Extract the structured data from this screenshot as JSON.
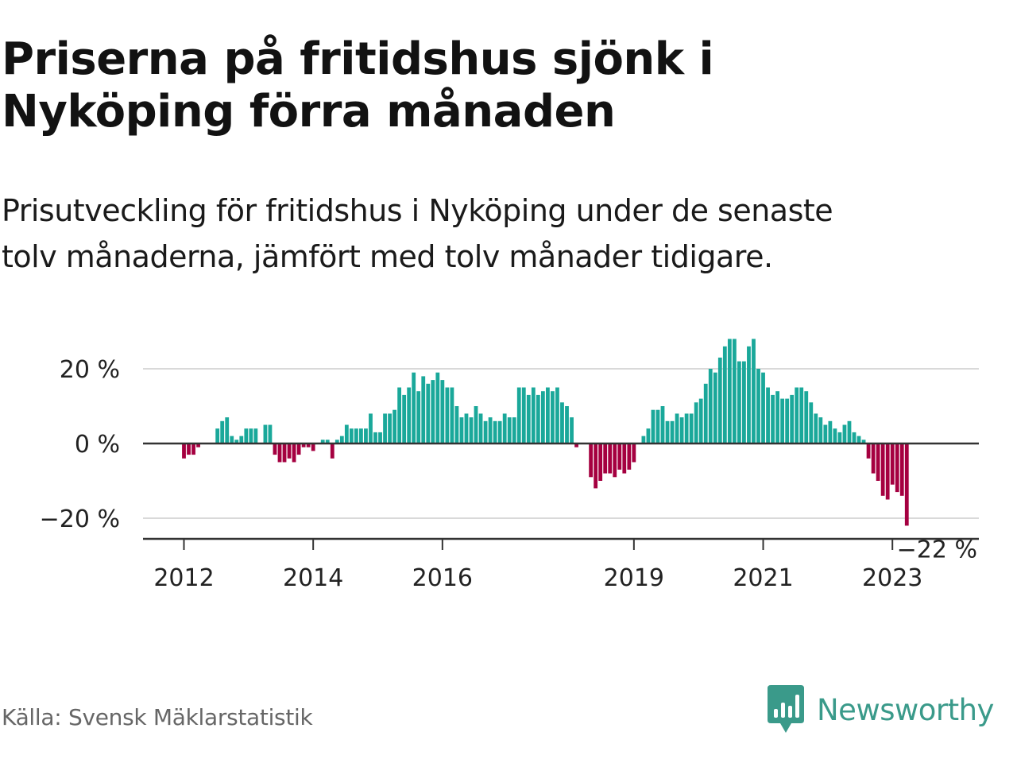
{
  "header": {
    "title_line1": "Priserna på fritidshus sjönk i",
    "title_line2": "Nyköping förra månaden",
    "subtitle_line1": "Prisutveckling för fritidshus i Nyköping under de senaste",
    "subtitle_line2": "tolv månaderna, jämfört med tolv månader tidigare."
  },
  "footer": {
    "source": "Källa: Svensk Mäklarstatistik",
    "brand": "Newsworthy"
  },
  "colors": {
    "positive": "#1aa89a",
    "negative": "#a50040",
    "grid": "#d9d9d9",
    "zero_line": "#333333",
    "axis": "#333333",
    "brand": "#3a9a8a",
    "text": "#121212"
  },
  "chart_data": {
    "type": "bar",
    "ylabel": "",
    "xlabel": "",
    "ylim": [
      -26,
      30
    ],
    "y_ticks": [
      {
        "value": 20,
        "label": "20 %"
      },
      {
        "value": 0,
        "label": "0 %"
      },
      {
        "value": -20,
        "label": "−20 %"
      }
    ],
    "x_ticks": [
      {
        "index": 0,
        "label": "2012"
      },
      {
        "index": 27,
        "label": "2014"
      },
      {
        "index": 54,
        "label": "2016"
      },
      {
        "index": 94,
        "label": "2019"
      },
      {
        "index": 121,
        "label": "2021"
      },
      {
        "index": 148,
        "label": "2023"
      }
    ],
    "last_value_label": "−22 %",
    "grid": true,
    "legend": "none",
    "values": [
      -4,
      -3,
      -3,
      -1,
      0,
      0,
      0,
      4,
      6,
      7,
      2,
      1,
      2,
      4,
      4,
      4,
      0,
      5,
      5,
      -3,
      -5,
      -5,
      -4,
      -5,
      -3,
      -1,
      -1,
      -2,
      0,
      1,
      1,
      -4,
      1,
      2,
      5,
      4,
      4,
      4,
      4,
      8,
      3,
      3,
      8,
      8,
      9,
      15,
      13,
      15,
      19,
      14,
      18,
      16,
      17,
      19,
      17,
      15,
      15,
      10,
      7,
      8,
      7,
      10,
      8,
      6,
      7,
      6,
      6,
      8,
      7,
      7,
      15,
      15,
      13,
      15,
      13,
      14,
      15,
      14,
      15,
      11,
      10,
      7,
      -1,
      0,
      0,
      -9,
      -12,
      -10,
      -8,
      -8,
      -9,
      -7,
      -8,
      -7,
      -5,
      0,
      2,
      4,
      9,
      9,
      10,
      6,
      6,
      8,
      7,
      8,
      8,
      11,
      12,
      16,
      20,
      19,
      23,
      26,
      28,
      28,
      22,
      22,
      26,
      28,
      20,
      19,
      15,
      13,
      14,
      12,
      12,
      13,
      15,
      15,
      14,
      11,
      8,
      7,
      5,
      6,
      4,
      3,
      5,
      6,
      3,
      2,
      1,
      -4,
      -8,
      -10,
      -14,
      -15,
      -11,
      -13,
      -14,
      -22
    ]
  }
}
